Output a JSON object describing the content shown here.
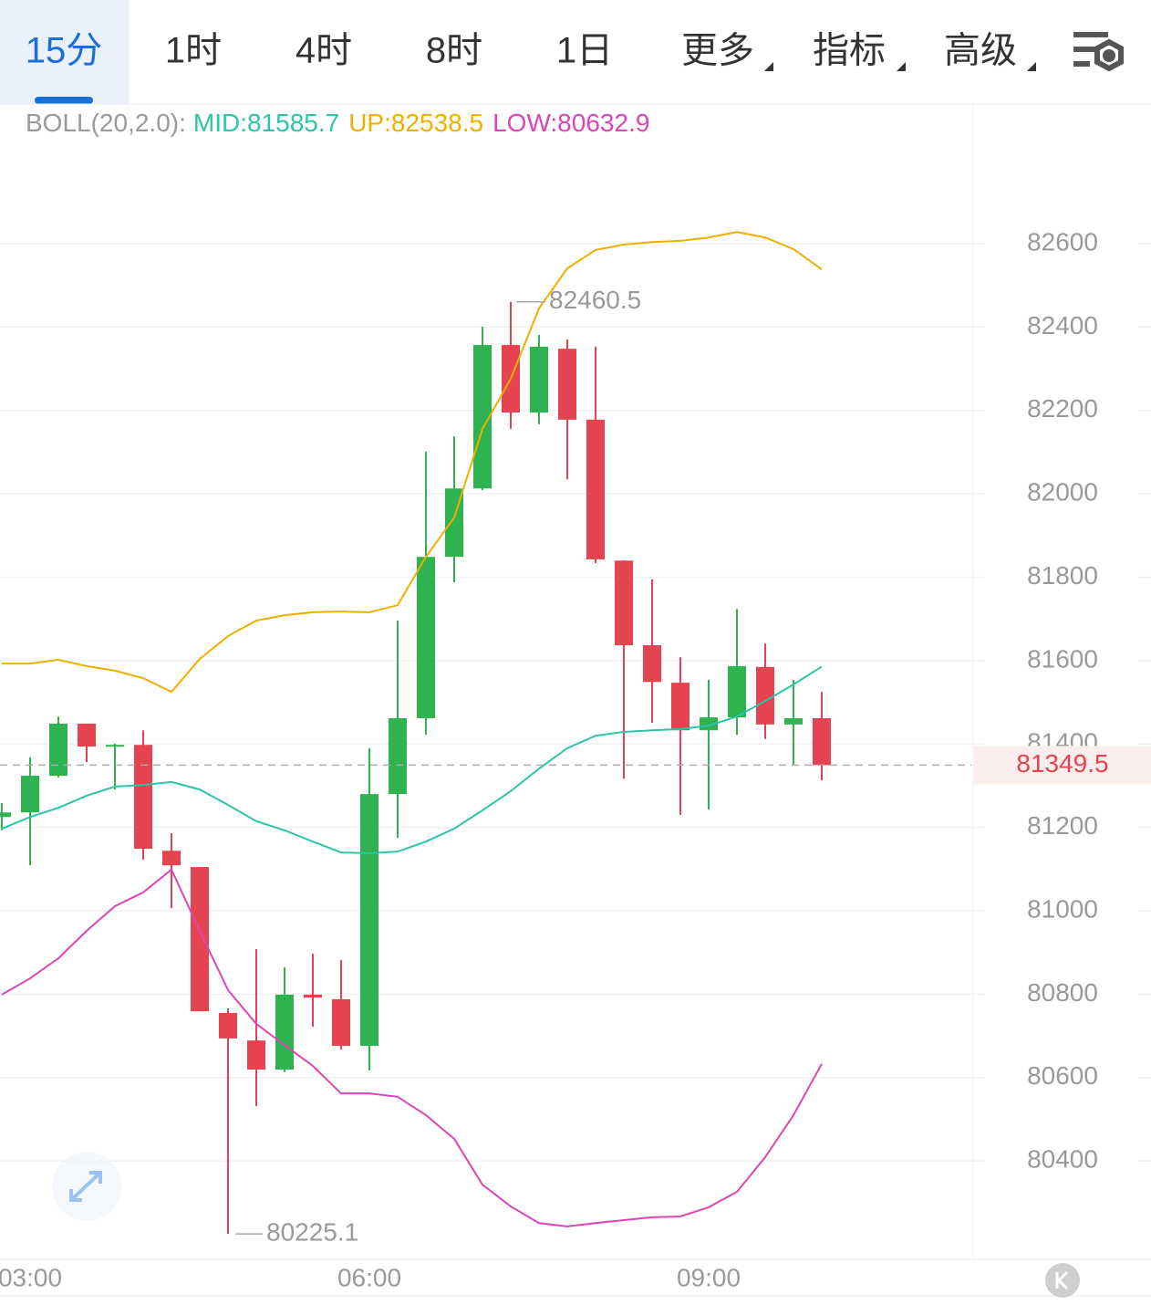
{
  "tabs": [
    "15分",
    "1时",
    "4时",
    "8时",
    "1日",
    "更多",
    "指标",
    "高级"
  ],
  "chart_data": {
    "type": "candlestick",
    "indicator": "BOLL(20,2.0):",
    "categories": [
      null,
      "03:00",
      null,
      null,
      null,
      null,
      null,
      null,
      null,
      null,
      null,
      null,
      null,
      "06:00",
      null,
      null,
      null,
      null,
      null,
      null,
      null,
      null,
      null,
      null,
      null,
      "09:00",
      null,
      null,
      null,
      null
    ],
    "open": [
      81225,
      81236,
      81324,
      81449,
      81394,
      81398,
      81144,
      81105,
      80755,
      80689,
      80619,
      80799,
      80788,
      80676,
      81280,
      81462,
      81849,
      82013,
      82357,
      82195,
      82348,
      82178,
      81840,
      81637,
      81547,
      81433,
      81464,
      81585,
      81447,
      81462
    ],
    "high": [
      81258,
      81368,
      81466,
      81449,
      81401,
      81433,
      81186,
      81105,
      80766,
      80908,
      80864,
      80897,
      80882,
      81390,
      81696,
      82101,
      82138,
      82401,
      82460.5,
      82381,
      82370,
      82353,
      81840,
      81795,
      81608,
      81554,
      81724,
      81641,
      81554,
      81525
    ],
    "low": [
      81193,
      81109,
      81320,
      81357,
      81291,
      81123,
      81007,
      80759,
      80225.1,
      80532,
      80613,
      80722,
      80667,
      80617,
      81175,
      81422,
      81788,
      82009,
      82156,
      82167,
      82035,
      81834,
      81317,
      81451,
      81230,
      81243,
      81422,
      81412,
      81350,
      81313
    ],
    "close": [
      81236,
      81324,
      81449,
      81394,
      81398,
      81149,
      81109,
      80759,
      80694,
      80619,
      80799,
      80792,
      80676,
      81280,
      81462,
      81849,
      82013,
      82357,
      82195,
      82353,
      82178,
      81843,
      81637,
      81549,
      81433,
      81464,
      81587,
      81447,
      81462,
      81349.5
    ],
    "up_color": "#2eb350",
    "down_color": "#e5434f",
    "series": [
      {
        "name": "MID:",
        "color": "#2cc5a6",
        "values": [
          81197,
          81225,
          81247,
          81276,
          81298,
          81302,
          81309,
          81291,
          81254,
          81215,
          81193,
          81166,
          81140,
          81138,
          81142,
          81166,
          81197,
          81241,
          81287,
          81341,
          81390,
          81420,
          81429,
          81433,
          81436,
          81444,
          81466,
          81503,
          81543,
          81585.7
        ]
      },
      {
        "name": "UP:",
        "color": "#eeb000",
        "values": [
          81593,
          81593,
          81602,
          81587,
          81576,
          81558,
          81525,
          81604,
          81659,
          81696,
          81709,
          81716,
          81718,
          81716,
          81733,
          81849,
          81943,
          82156,
          82276,
          82445,
          82541,
          82585,
          82598,
          82604,
          82607,
          82615,
          82628,
          82615,
          82587,
          82538.5
        ]
      },
      {
        "name": "LOW:",
        "color": "#dc45b4",
        "values": [
          80799,
          80838,
          80886,
          80952,
          81011,
          81044,
          81099,
          80952,
          80810,
          80729,
          80678,
          80628,
          80562,
          80562,
          80554,
          80510,
          80453,
          80343,
          80291,
          80251,
          80243,
          80251,
          80258,
          80265,
          80267,
          80289,
          80326,
          80409,
          80510,
          80632.9
        ]
      }
    ],
    "ylim": [
      80164,
      82935
    ],
    "yticks": [
      80400,
      80600,
      80800,
      81000,
      81200,
      81400,
      81600,
      81800,
      82000,
      82200,
      82400,
      82600
    ],
    "grid": true
  }
}
